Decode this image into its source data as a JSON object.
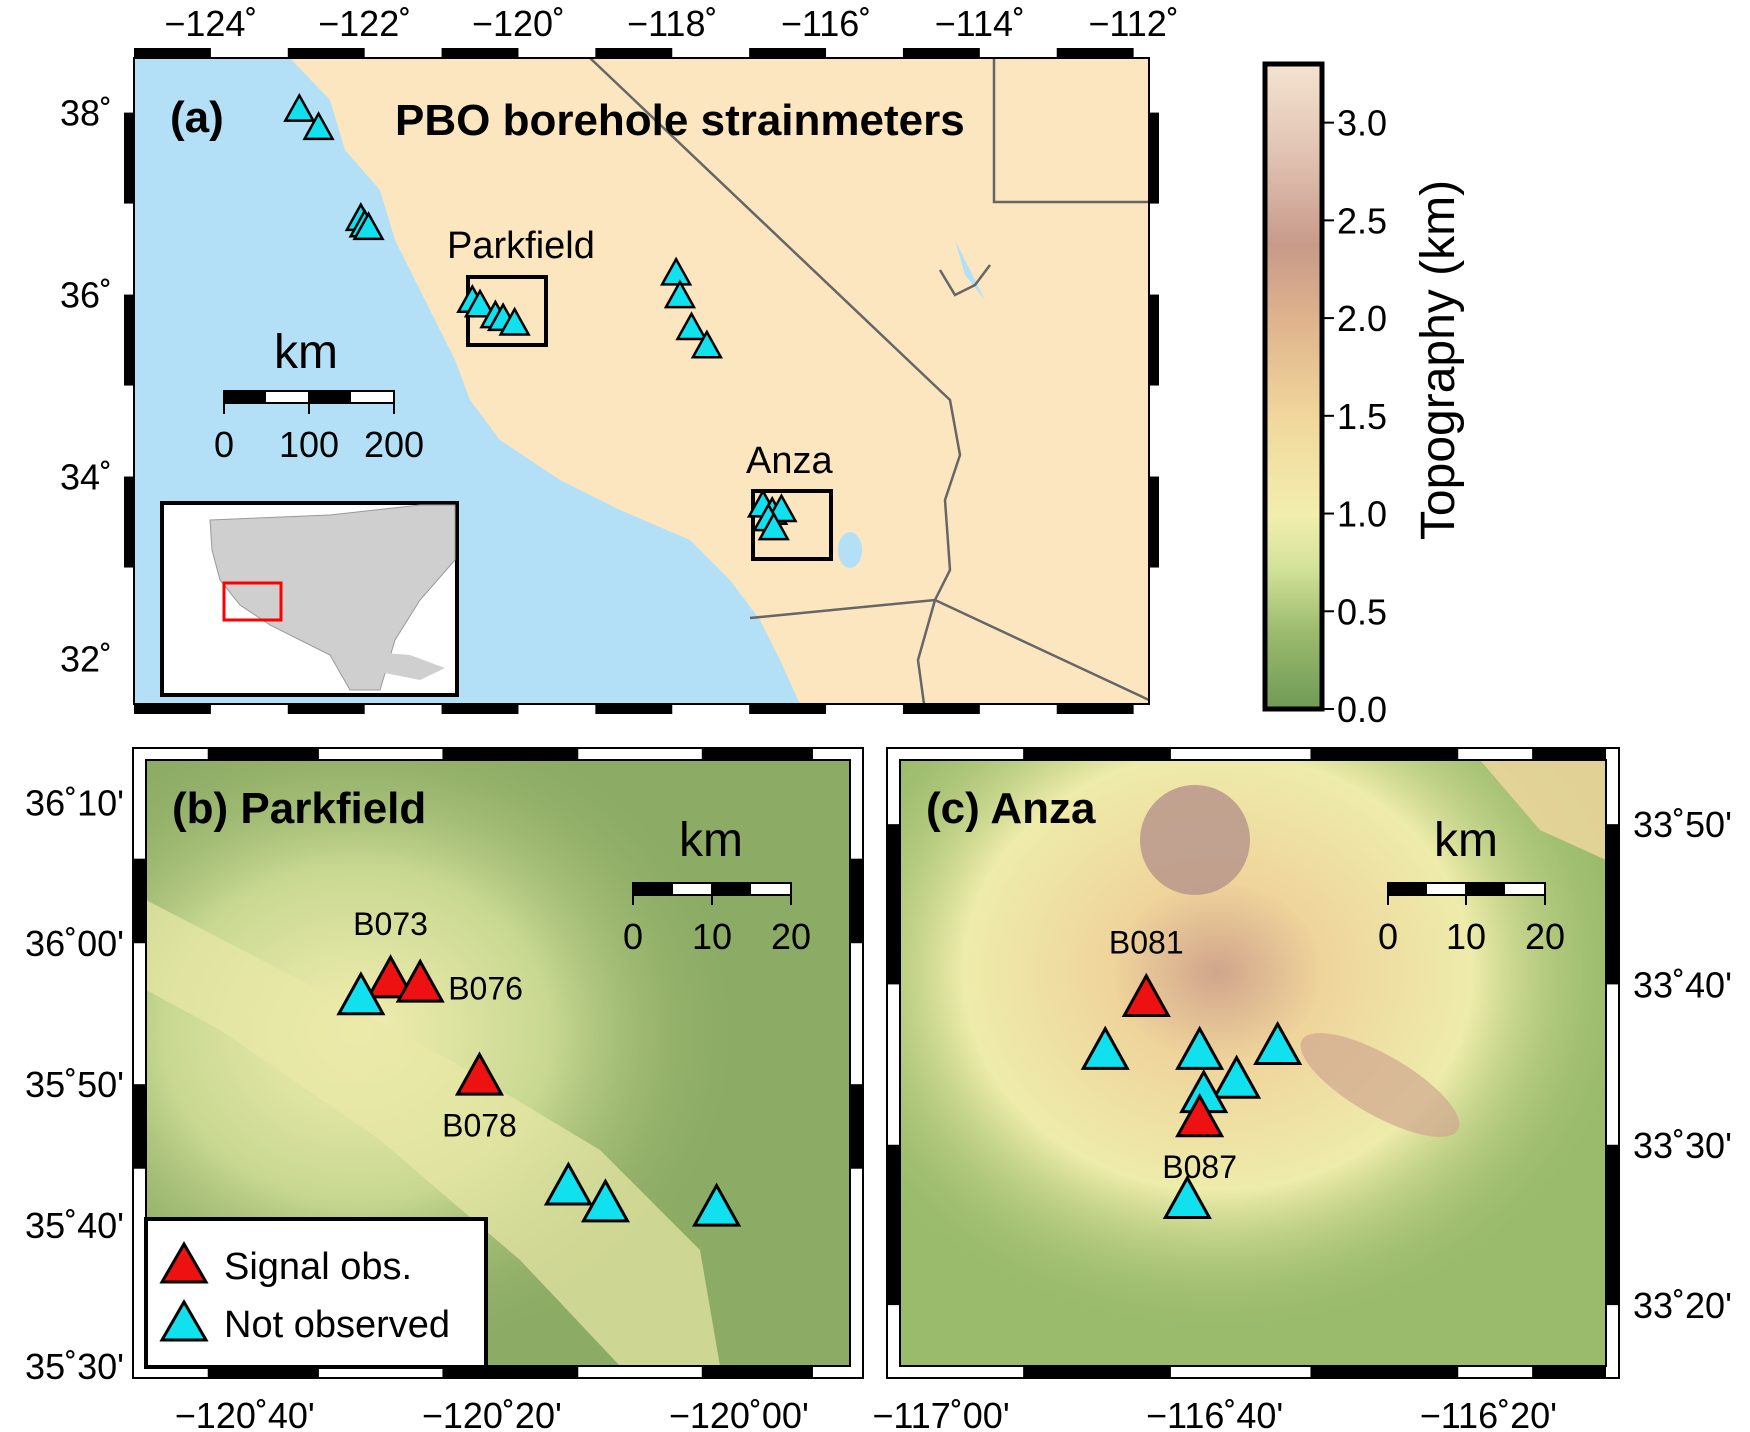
{
  "panel_a": {
    "title_letter": "(a)",
    "title": "PBO borehole strainmeters",
    "label_parkfield": "Parkfield",
    "label_anza": "Anza",
    "scale_unit": "km",
    "scale_ticks": [
      "0",
      "100",
      "200"
    ],
    "lon_ticks": [
      "−124˚",
      "−122˚",
      "−120˚",
      "−118˚",
      "−116˚",
      "−114˚",
      "−112˚"
    ],
    "lat_ticks": [
      "38˚",
      "36˚",
      "34˚",
      "32˚"
    ],
    "stations": [
      {
        "lon": -122.85,
        "lat": 38.05
      },
      {
        "lon": -122.6,
        "lat": 37.85
      },
      {
        "lon": -122.05,
        "lat": 36.85
      },
      {
        "lon": -122.0,
        "lat": 36.78
      },
      {
        "lon": -121.95,
        "lat": 36.75
      },
      {
        "lon": -120.6,
        "lat": 35.95
      },
      {
        "lon": -120.5,
        "lat": 35.9
      },
      {
        "lon": -120.3,
        "lat": 35.78
      },
      {
        "lon": -120.2,
        "lat": 35.75
      },
      {
        "lon": -120.05,
        "lat": 35.7
      },
      {
        "lon": -117.95,
        "lat": 36.25
      },
      {
        "lon": -117.9,
        "lat": 36.0
      },
      {
        "lon": -117.75,
        "lat": 35.65
      },
      {
        "lon": -117.55,
        "lat": 35.45
      },
      {
        "lon": -116.82,
        "lat": 33.7
      },
      {
        "lon": -116.7,
        "lat": 33.62
      },
      {
        "lon": -116.58,
        "lat": 33.65
      },
      {
        "lon": -116.75,
        "lat": 33.55
      },
      {
        "lon": -116.68,
        "lat": 33.45
      }
    ]
  },
  "panel_b": {
    "title": "(b) Parkfield",
    "scale_unit": "km",
    "scale_ticks": [
      "0",
      "10",
      "20"
    ],
    "lon_ticks": [
      "−120˚40'",
      "−120˚20'",
      "−120˚00'"
    ],
    "lat_ticks": [
      "36˚10'",
      "36˚00'",
      "35˚50'",
      "35˚40'",
      "35˚30'"
    ],
    "legend": {
      "signal": "Signal obs.",
      "not_observed": "Not observed"
    },
    "stations": [
      {
        "name": "B073",
        "status": "signal",
        "lon": -120.47,
        "lat": 35.96
      },
      {
        "name": "B076",
        "status": "signal",
        "lon": -120.43,
        "lat": 35.955
      },
      {
        "name": "",
        "status": "none",
        "lon": -120.51,
        "lat": 35.94
      },
      {
        "name": "B078",
        "status": "signal",
        "lon": -120.35,
        "lat": 35.845
      },
      {
        "name": "",
        "status": "none",
        "lon": -120.23,
        "lat": 35.715
      },
      {
        "name": "",
        "status": "none",
        "lon": -120.18,
        "lat": 35.695
      },
      {
        "name": "",
        "status": "none",
        "lon": -120.03,
        "lat": 35.69
      }
    ]
  },
  "panel_c": {
    "title": "(c) Anza",
    "scale_unit": "km",
    "scale_ticks": [
      "0",
      "10",
      "20"
    ],
    "lon_ticks": [
      "−117˚00'",
      "−116˚40'",
      "−116˚20'"
    ],
    "lat_ticks": [
      "33˚50'",
      "33˚40'",
      "33˚30'",
      "33˚20'"
    ],
    "stations": [
      {
        "name": "B081",
        "status": "signal",
        "lon": -116.75,
        "lat": 33.655
      },
      {
        "name": "",
        "status": "none",
        "lon": -116.8,
        "lat": 33.6
      },
      {
        "name": "",
        "status": "none",
        "lon": -116.685,
        "lat": 33.6
      },
      {
        "name": "",
        "status": "none",
        "lon": -116.59,
        "lat": 33.605
      },
      {
        "name": "",
        "status": "none",
        "lon": -116.64,
        "lat": 33.57
      },
      {
        "name": "",
        "status": "none",
        "lon": -116.68,
        "lat": 33.555
      },
      {
        "name": "B087",
        "status": "signal",
        "lon": -116.685,
        "lat": 33.53
      },
      {
        "name": "",
        "status": "none",
        "lon": -116.7,
        "lat": 33.445
      }
    ]
  },
  "colorbar": {
    "label": "Topography (km)",
    "ticks": [
      "0.0",
      "0.5",
      "1.0",
      "1.5",
      "2.0",
      "2.5",
      "3.0"
    ]
  },
  "colors": {
    "ocean": "#b3e0f7",
    "land": "#fce6bf",
    "signal": "#ee1111",
    "not_observed": "#11e0ee",
    "border": "#666666",
    "inset_box": "#ff0000"
  }
}
